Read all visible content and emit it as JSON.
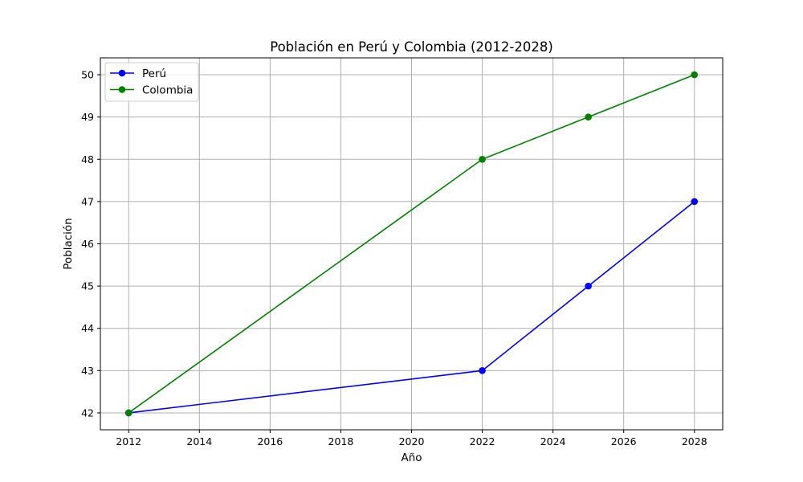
{
  "chart_data": {
    "type": "line",
    "title": "Población en Perú y Colombia (2012-2028)",
    "xlabel": "Año",
    "ylabel": "Población",
    "x": [
      2012,
      2022,
      2025,
      2028
    ],
    "series": [
      {
        "name": "Perú",
        "values": [
          42,
          43,
          45,
          47
        ],
        "color": "#0000ff"
      },
      {
        "name": "Colombia",
        "values": [
          42,
          48,
          49,
          50
        ],
        "color": "#008000"
      }
    ],
    "xlim": [
      2011.2,
      2028.8
    ],
    "ylim": [
      41.6,
      50.4
    ],
    "xticks": [
      2012,
      2014,
      2016,
      2018,
      2020,
      2022,
      2024,
      2026,
      2028
    ],
    "yticks": [
      42,
      43,
      44,
      45,
      46,
      47,
      48,
      49,
      50
    ],
    "grid": true,
    "legend_position": "top-left",
    "marker": "circle"
  }
}
